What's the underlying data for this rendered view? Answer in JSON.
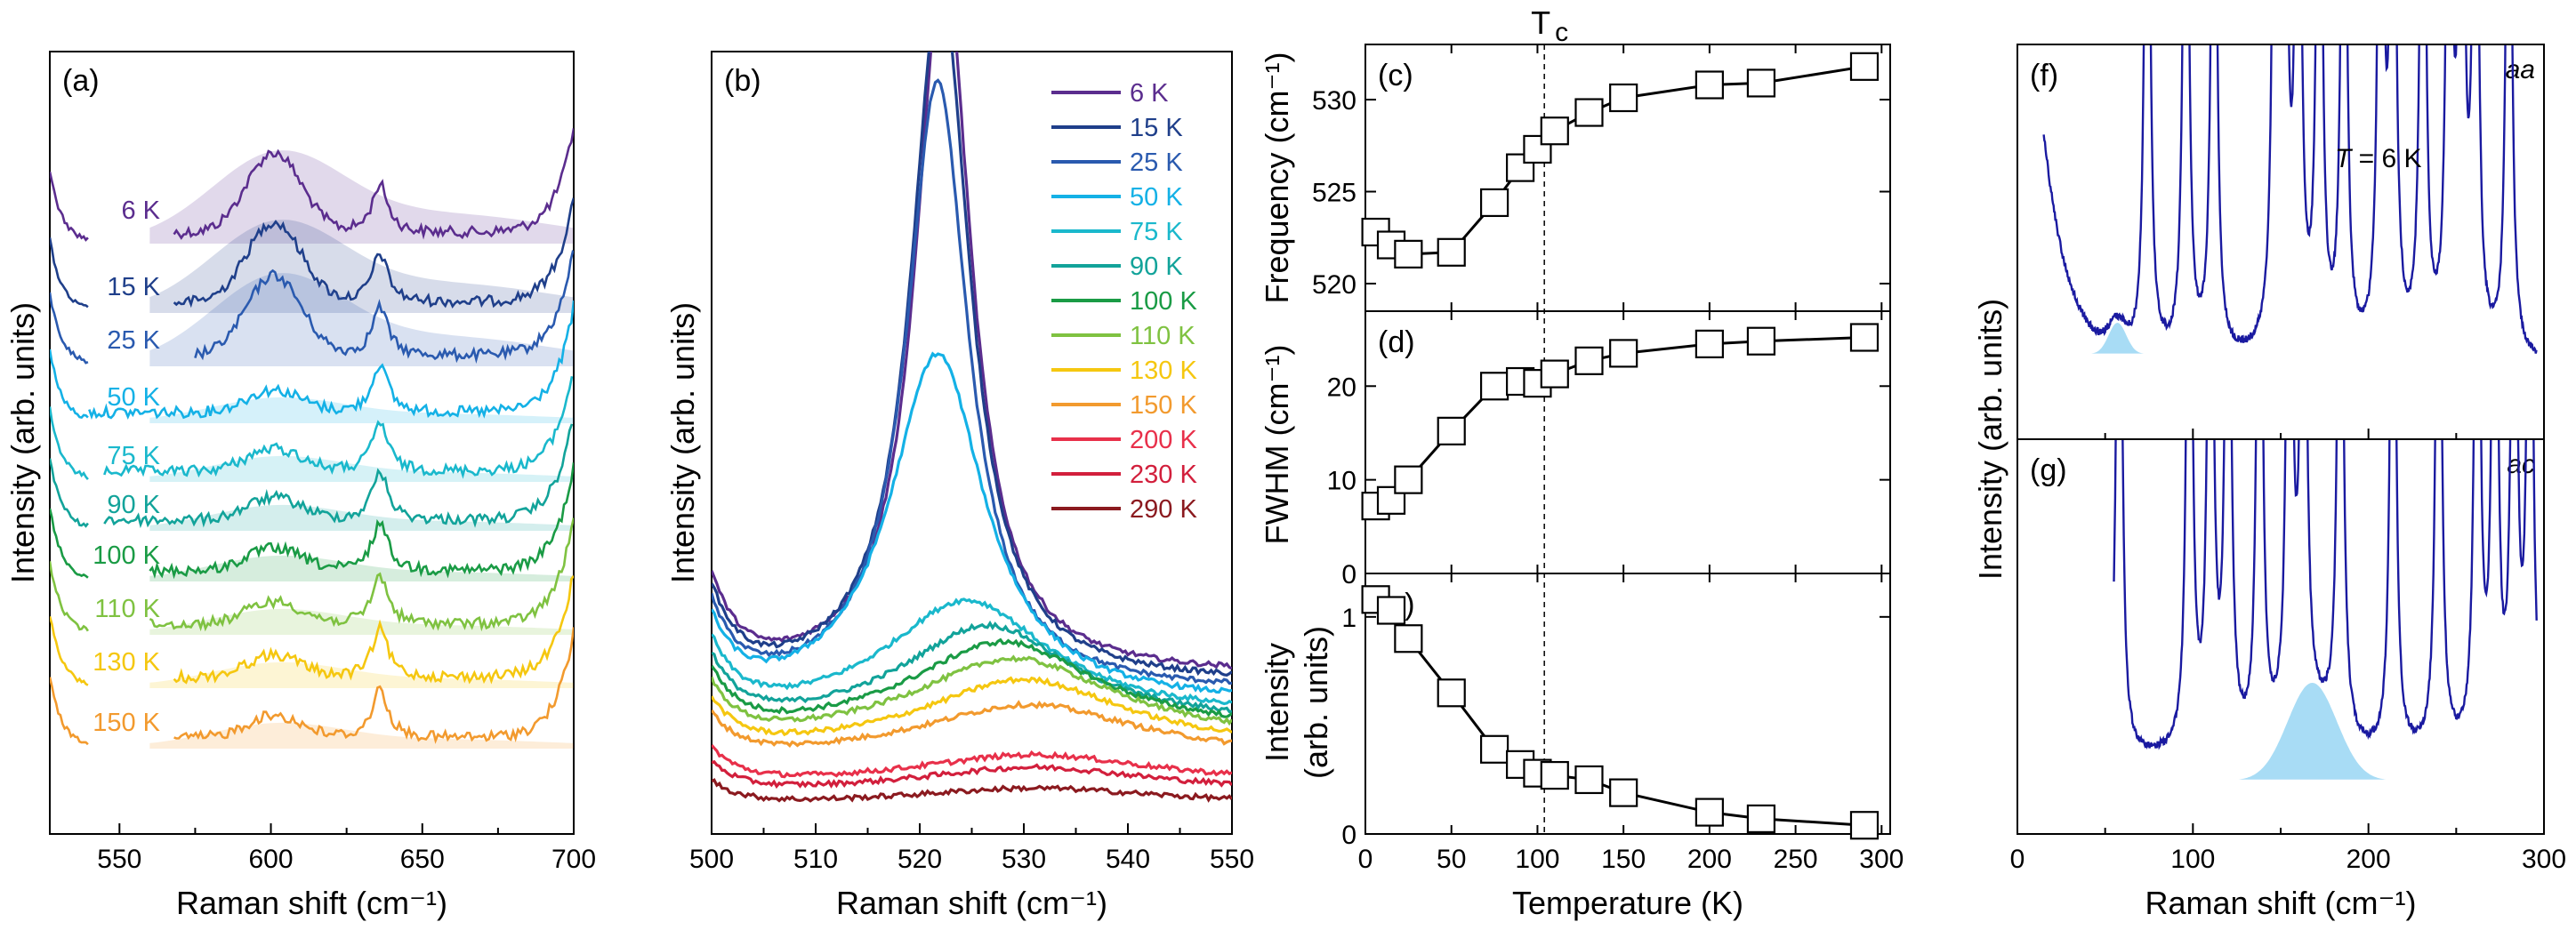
{
  "chart_data": [
    {
      "panel": "(a)",
      "type": "line",
      "xlabel": "Raman shift (cm⁻¹)",
      "ylabel": "Intensity (arb. units)",
      "xlim": [
        527,
        700
      ],
      "xticks": [
        550,
        600,
        650,
        700
      ],
      "description_peaks_cm-1": [
        600,
        636
      ],
      "series": [
        {
          "name": "6 K",
          "color": "#5b2d8e",
          "offset": 0.0
        },
        {
          "name": "15 K",
          "color": "#1f3f8a",
          "offset": 1.0
        },
        {
          "name": "25 K",
          "color": "#2a5aaf",
          "offset": 2.0
        },
        {
          "name": "50 K",
          "color": "#14b1e6",
          "offset": 3.0
        },
        {
          "name": "75 K",
          "color": "#1ab8cc",
          "offset": 4.0
        },
        {
          "name": "90 K",
          "color": "#12a39a",
          "offset": 5.0
        },
        {
          "name": "100 K",
          "color": "#1a9b45",
          "offset": 6.0
        },
        {
          "name": "110 K",
          "color": "#7fc241",
          "offset": 7.0
        },
        {
          "name": "130 K",
          "color": "#f5c710",
          "offset": 8.0
        },
        {
          "name": "150 K",
          "color": "#f29a2e",
          "offset": 9.0
        }
      ]
    },
    {
      "panel": "(b)",
      "type": "line",
      "xlabel": "Raman shift (cm⁻¹)",
      "ylabel": "Intensity (arb. units)",
      "xlim": [
        500,
        550
      ],
      "xticks": [
        500,
        510,
        520,
        530,
        540,
        550
      ],
      "series": [
        {
          "name": "6 K",
          "color": "#5b2d8e",
          "center": 522.3,
          "width": 3.2,
          "amp": 8.6,
          "base": 1.6
        },
        {
          "name": "15 K",
          "color": "#1f3f8a",
          "center": 522.0,
          "width": 3.4,
          "amp": 8.4,
          "base": 1.5
        },
        {
          "name": "25 K",
          "color": "#2a5aaf",
          "center": 521.7,
          "width": 3.6,
          "amp": 7.3,
          "base": 1.4
        },
        {
          "name": "50 K",
          "color": "#14b1e6",
          "center": 521.7,
          "width": 5.5,
          "amp": 4.2,
          "base": 1.25
        },
        {
          "name": "75 K",
          "color": "#1ab8cc",
          "center": 524.5,
          "width": 9.5,
          "amp": 1.4,
          "base": 1.1
        },
        {
          "name": "90 K",
          "color": "#12a39a",
          "center": 526.5,
          "width": 10,
          "amp": 1.2,
          "base": 1.0
        },
        {
          "name": "100 K",
          "color": "#1a9b45",
          "center": 528.0,
          "width": 11,
          "amp": 1.1,
          "base": 0.9
        },
        {
          "name": "110 K",
          "color": "#7fc241",
          "center": 529.0,
          "width": 12,
          "amp": 1.0,
          "base": 0.8
        },
        {
          "name": "130 K",
          "color": "#f5c710",
          "center": 530.0,
          "width": 12,
          "amp": 0.85,
          "base": 0.7
        },
        {
          "name": "150 K",
          "color": "#f29a2e",
          "center": 530.5,
          "width": 13,
          "amp": 0.65,
          "base": 0.6
        },
        {
          "name": "200 K",
          "color": "#e8304a",
          "center": 531.0,
          "width": 14,
          "amp": 0.35,
          "base": 0.3
        },
        {
          "name": "230 K",
          "color": "#d21f3c",
          "center": 531.0,
          "width": 14,
          "amp": 0.3,
          "base": 0.2
        },
        {
          "name": "290 K",
          "color": "#8b1a1f",
          "center": 531.0,
          "width": 15,
          "amp": 0.2,
          "base": 0.05
        }
      ]
    },
    {
      "panel": "(c)",
      "type": "line",
      "ylabel": "Frequency (cm⁻¹)",
      "x": [
        6,
        15,
        25,
        50,
        75,
        90,
        100,
        110,
        130,
        150,
        200,
        230,
        290
      ],
      "y": [
        522.8,
        522.1,
        521.6,
        521.7,
        524.4,
        526.3,
        527.3,
        528.3,
        529.3,
        530.1,
        530.8,
        530.9,
        531.8
      ],
      "ylim": [
        518.5,
        533
      ],
      "yticks": [
        520,
        525,
        530
      ],
      "xlim": [
        0,
        305
      ]
    },
    {
      "panel": "(d)",
      "type": "line",
      "ylabel": "FWHM (cm⁻¹)",
      "x": [
        6,
        15,
        25,
        50,
        75,
        90,
        100,
        110,
        130,
        150,
        200,
        230,
        290
      ],
      "y": [
        7.2,
        7.8,
        10.0,
        15.2,
        20.0,
        20.5,
        20.3,
        21.3,
        22.7,
        23.5,
        24.5,
        24.8,
        25.2
      ],
      "ylim": [
        0,
        28
      ],
      "yticks": [
        0,
        10,
        20
      ],
      "xlim": [
        0,
        305
      ]
    },
    {
      "panel": "(e)",
      "type": "line",
      "ylabel": "Intensity",
      "ylabel2": "(arb. units)",
      "xlabel": "Temperature (K)",
      "x": [
        6,
        15,
        25,
        50,
        75,
        90,
        100,
        110,
        130,
        150,
        200,
        230,
        290
      ],
      "y": [
        1.08,
        1.03,
        0.9,
        0.65,
        0.39,
        0.32,
        0.28,
        0.27,
        0.25,
        0.19,
        0.1,
        0.07,
        0.04
      ],
      "ylim": [
        0,
        1.2
      ],
      "yticks": [
        0,
        1
      ],
      "xlim": [
        0,
        305
      ],
      "xticks": [
        0,
        50,
        100,
        150,
        200,
        250,
        300
      ],
      "tc_line_x": 104,
      "tc_label": "T",
      "tc_sub": "c"
    },
    {
      "panel": "(f)",
      "type": "line",
      "tag": "aa",
      "annotation_T": "T",
      "annotation_rest": " = 6 K",
      "ylabel": "Intensity (arb. units)",
      "xlim": [
        0,
        300
      ],
      "shaded_peak_cm-1": 57,
      "color": "#1a1aa0",
      "fill_color": "#a8dcf5"
    },
    {
      "panel": "(g)",
      "type": "line",
      "tag": "ac",
      "xlabel": "Raman shift (cm⁻¹)",
      "xlim": [
        0,
        300
      ],
      "xticks": [
        0,
        100,
        200,
        300
      ],
      "shaded_peak_cm-1": 168,
      "color": "#1a1aa0",
      "fill_color": "#a8dcf5"
    }
  ]
}
